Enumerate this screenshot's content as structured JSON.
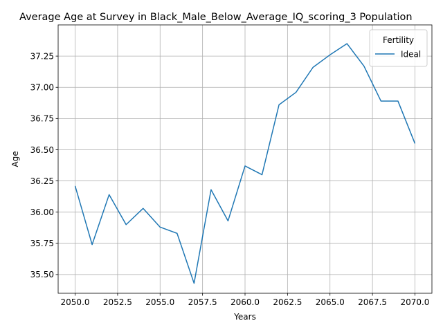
{
  "chart_data": {
    "type": "line",
    "title": "Average Age at Survey in Black_Male_Below_Average_IQ_scoring_3 Population",
    "xlabel": "Years",
    "ylabel": "Age",
    "xlim": [
      2049.0,
      2071.0
    ],
    "ylim": [
      35.35,
      37.5
    ],
    "xticks": [
      2050.0,
      2052.5,
      2055.0,
      2057.5,
      2060.0,
      2062.5,
      2065.0,
      2067.5,
      2070.0
    ],
    "xtick_labels": [
      "2050.0",
      "2052.5",
      "2055.0",
      "2057.5",
      "2060.0",
      "2062.5",
      "2065.0",
      "2067.5",
      "2070.0"
    ],
    "yticks": [
      35.5,
      35.75,
      36.0,
      36.25,
      36.5,
      36.75,
      37.0,
      37.25
    ],
    "ytick_labels": [
      "35.50",
      "35.75",
      "36.00",
      "36.25",
      "36.50",
      "36.75",
      "37.00",
      "37.25"
    ],
    "grid": true,
    "legend": {
      "title": "Fertility",
      "placement": "top-right"
    },
    "x": [
      2050,
      2051,
      2052,
      2053,
      2054,
      2055,
      2056,
      2057,
      2058,
      2059,
      2060,
      2061,
      2062,
      2063,
      2064,
      2065,
      2066,
      2067,
      2068,
      2069,
      2070
    ],
    "series": [
      {
        "name": "Ideal",
        "color": "#1f77b4",
        "values": [
          36.21,
          35.74,
          36.14,
          35.9,
          36.03,
          35.88,
          35.83,
          35.43,
          36.18,
          35.93,
          36.37,
          36.3,
          36.86,
          36.96,
          37.16,
          37.26,
          37.35,
          37.17,
          36.89,
          36.89,
          36.55
        ]
      }
    ]
  }
}
